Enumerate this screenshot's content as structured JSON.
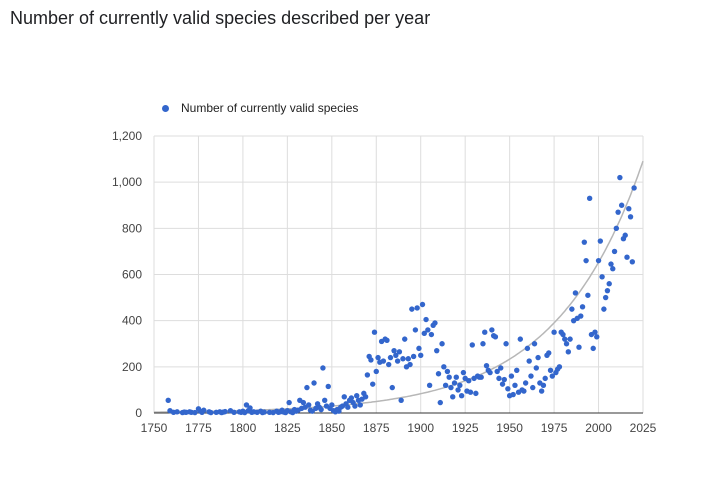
{
  "chart_data": {
    "type": "scatter",
    "title": "Number of currently valid species described per year",
    "legend": {
      "label": "Number of currently valid species",
      "position": "top-left"
    },
    "colors": {
      "points": "#3366cc",
      "trendline": "#b7b7b7",
      "gridline": "#dddddd",
      "baseline": "#333333"
    },
    "xlim": [
      1750,
      2025
    ],
    "ylim": [
      0,
      1200
    ],
    "x_ticks": [
      "1750",
      "1775",
      "1800",
      "1825",
      "1850",
      "1875",
      "1900",
      "1925",
      "1950",
      "1975",
      "2000",
      "2025"
    ],
    "y_ticks": [
      "0",
      "200",
      "400",
      "600",
      "800",
      "1,000",
      "1,200"
    ],
    "grid": true,
    "trendline": {
      "type": "exponential"
    },
    "series": [
      {
        "name": "Number of currently valid species",
        "points": [
          [
            1758,
            55
          ],
          [
            1759,
            10
          ],
          [
            1761,
            3
          ],
          [
            1763,
            5
          ],
          [
            1766,
            2
          ],
          [
            1767,
            4
          ],
          [
            1768,
            3
          ],
          [
            1770,
            5
          ],
          [
            1771,
            3
          ],
          [
            1773,
            2
          ],
          [
            1775,
            18
          ],
          [
            1776,
            8
          ],
          [
            1777,
            3
          ],
          [
            1778,
            12
          ],
          [
            1781,
            5
          ],
          [
            1782,
            2
          ],
          [
            1785,
            3
          ],
          [
            1787,
            5
          ],
          [
            1788,
            2
          ],
          [
            1789,
            4
          ],
          [
            1790,
            6
          ],
          [
            1793,
            10
          ],
          [
            1795,
            3
          ],
          [
            1798,
            5
          ],
          [
            1799,
            3
          ],
          [
            1800,
            8
          ],
          [
            1801,
            2
          ],
          [
            1802,
            35
          ],
          [
            1803,
            10
          ],
          [
            1804,
            22
          ],
          [
            1805,
            3
          ],
          [
            1806,
            5
          ],
          [
            1808,
            3
          ],
          [
            1810,
            8
          ],
          [
            1811,
            2
          ],
          [
            1812,
            4
          ],
          [
            1815,
            3
          ],
          [
            1817,
            2
          ],
          [
            1819,
            8
          ],
          [
            1820,
            3
          ],
          [
            1821,
            5
          ],
          [
            1822,
            12
          ],
          [
            1823,
            4
          ],
          [
            1824,
            2
          ],
          [
            1825,
            10
          ],
          [
            1826,
            45
          ],
          [
            1827,
            5
          ],
          [
            1828,
            2
          ],
          [
            1829,
            15
          ],
          [
            1830,
            8
          ],
          [
            1831,
            12
          ],
          [
            1832,
            55
          ],
          [
            1833,
            20
          ],
          [
            1834,
            45
          ],
          [
            1835,
            25
          ],
          [
            1836,
            110
          ],
          [
            1837,
            35
          ],
          [
            1838,
            12
          ],
          [
            1839,
            8
          ],
          [
            1840,
            130
          ],
          [
            1841,
            20
          ],
          [
            1842,
            40
          ],
          [
            1843,
            25
          ],
          [
            1844,
            15
          ],
          [
            1845,
            195
          ],
          [
            1846,
            55
          ],
          [
            1847,
            30
          ],
          [
            1848,
            115
          ],
          [
            1849,
            20
          ],
          [
            1850,
            35
          ],
          [
            1851,
            10
          ],
          [
            1852,
            5
          ],
          [
            1853,
            15
          ],
          [
            1854,
            8
          ],
          [
            1855,
            25
          ],
          [
            1856,
            30
          ],
          [
            1857,
            70
          ],
          [
            1858,
            40
          ],
          [
            1859,
            25
          ],
          [
            1860,
            55
          ],
          [
            1861,
            65
          ],
          [
            1862,
            45
          ],
          [
            1863,
            30
          ],
          [
            1864,
            75
          ],
          [
            1865,
            55
          ],
          [
            1866,
            35
          ],
          [
            1867,
            60
          ],
          [
            1868,
            85
          ],
          [
            1869,
            70
          ],
          [
            1870,
            165
          ],
          [
            1871,
            245
          ],
          [
            1872,
            230
          ],
          [
            1873,
            125
          ],
          [
            1874,
            350
          ],
          [
            1875,
            180
          ],
          [
            1876,
            240
          ],
          [
            1877,
            220
          ],
          [
            1878,
            310
          ],
          [
            1879,
            225
          ],
          [
            1880,
            320
          ],
          [
            1881,
            315
          ],
          [
            1882,
            210
          ],
          [
            1883,
            240
          ],
          [
            1884,
            110
          ],
          [
            1885,
            270
          ],
          [
            1886,
            250
          ],
          [
            1887,
            225
          ],
          [
            1888,
            265
          ],
          [
            1889,
            55
          ],
          [
            1890,
            235
          ],
          [
            1891,
            320
          ],
          [
            1892,
            200
          ],
          [
            1893,
            235
          ],
          [
            1894,
            210
          ],
          [
            1895,
            450
          ],
          [
            1896,
            245
          ],
          [
            1897,
            360
          ],
          [
            1898,
            455
          ],
          [
            1899,
            280
          ],
          [
            1900,
            250
          ],
          [
            1901,
            470
          ],
          [
            1902,
            345
          ],
          [
            1903,
            405
          ],
          [
            1904,
            360
          ],
          [
            1905,
            120
          ],
          [
            1906,
            340
          ],
          [
            1907,
            380
          ],
          [
            1908,
            390
          ],
          [
            1909,
            270
          ],
          [
            1910,
            170
          ],
          [
            1911,
            45
          ],
          [
            1912,
            300
          ],
          [
            1913,
            200
          ],
          [
            1914,
            120
          ],
          [
            1915,
            180
          ],
          [
            1916,
            155
          ],
          [
            1917,
            110
          ],
          [
            1918,
            70
          ],
          [
            1919,
            130
          ],
          [
            1920,
            155
          ],
          [
            1921,
            100
          ],
          [
            1922,
            120
          ],
          [
            1923,
            75
          ],
          [
            1924,
            175
          ],
          [
            1925,
            150
          ],
          [
            1926,
            95
          ],
          [
            1927,
            140
          ],
          [
            1928,
            90
          ],
          [
            1929,
            295
          ],
          [
            1930,
            150
          ],
          [
            1931,
            85
          ],
          [
            1932,
            160
          ],
          [
            1933,
            155
          ],
          [
            1934,
            155
          ],
          [
            1935,
            300
          ],
          [
            1936,
            350
          ],
          [
            1937,
            205
          ],
          [
            1938,
            185
          ],
          [
            1939,
            175
          ],
          [
            1940,
            360
          ],
          [
            1941,
            335
          ],
          [
            1942,
            330
          ],
          [
            1943,
            180
          ],
          [
            1944,
            150
          ],
          [
            1945,
            195
          ],
          [
            1946,
            125
          ],
          [
            1947,
            145
          ],
          [
            1948,
            300
          ],
          [
            1949,
            105
          ],
          [
            1950,
            75
          ],
          [
            1951,
            160
          ],
          [
            1952,
            80
          ],
          [
            1953,
            120
          ],
          [
            1954,
            185
          ],
          [
            1955,
            90
          ],
          [
            1956,
            320
          ],
          [
            1957,
            100
          ],
          [
            1958,
            95
          ],
          [
            1959,
            130
          ],
          [
            1960,
            280
          ],
          [
            1961,
            225
          ],
          [
            1962,
            160
          ],
          [
            1963,
            110
          ],
          [
            1964,
            300
          ],
          [
            1965,
            195
          ],
          [
            1966,
            240
          ],
          [
            1967,
            130
          ],
          [
            1968,
            95
          ],
          [
            1969,
            120
          ],
          [
            1970,
            150
          ],
          [
            1971,
            250
          ],
          [
            1972,
            260
          ],
          [
            1973,
            185
          ],
          [
            1974,
            160
          ],
          [
            1975,
            350
          ],
          [
            1976,
            175
          ],
          [
            1977,
            190
          ],
          [
            1978,
            200
          ],
          [
            1979,
            350
          ],
          [
            1980,
            340
          ],
          [
            1981,
            320
          ],
          [
            1982,
            300
          ],
          [
            1983,
            265
          ],
          [
            1984,
            320
          ],
          [
            1985,
            450
          ],
          [
            1986,
            400
          ],
          [
            1987,
            520
          ],
          [
            1988,
            410
          ],
          [
            1989,
            285
          ],
          [
            1990,
            420
          ],
          [
            1991,
            460
          ],
          [
            1992,
            740
          ],
          [
            1993,
            660
          ],
          [
            1994,
            510
          ],
          [
            1995,
            930
          ],
          [
            1996,
            340
          ],
          [
            1997,
            280
          ],
          [
            1998,
            350
          ],
          [
            1999,
            330
          ],
          [
            2000,
            660
          ],
          [
            2001,
            745
          ],
          [
            2002,
            590
          ],
          [
            2003,
            450
          ],
          [
            2004,
            500
          ],
          [
            2005,
            530
          ],
          [
            2006,
            560
          ],
          [
            2007,
            645
          ],
          [
            2008,
            625
          ],
          [
            2009,
            700
          ],
          [
            2010,
            800
          ],
          [
            2011,
            870
          ],
          [
            2012,
            1020
          ],
          [
            2013,
            900
          ],
          [
            2014,
            755
          ],
          [
            2015,
            770
          ],
          [
            2016,
            675
          ],
          [
            2017,
            885
          ],
          [
            2018,
            850
          ],
          [
            2019,
            655
          ],
          [
            2020,
            975
          ]
        ]
      }
    ]
  }
}
